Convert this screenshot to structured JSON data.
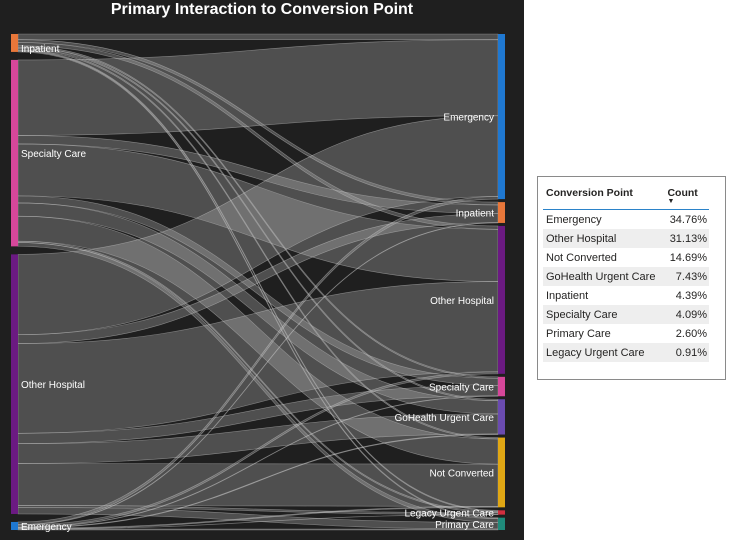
{
  "title": "Primary Interaction to Conversion Point",
  "table": {
    "headers": [
      "Conversion Point",
      "Count"
    ],
    "rows": [
      {
        "name": "Emergency",
        "value": "34.76%"
      },
      {
        "name": "Other Hospital",
        "value": "31.13%"
      },
      {
        "name": "Not Converted",
        "value": "14.69%"
      },
      {
        "name": "GoHealth Urgent Care",
        "value": "7.43%"
      },
      {
        "name": "Inpatient",
        "value": "4.39%"
      },
      {
        "name": "Specialty Care",
        "value": "4.09%"
      },
      {
        "name": "Primary Care",
        "value": "2.60%"
      },
      {
        "name": "Legacy Urgent Care",
        "value": "0.91%"
      }
    ]
  },
  "chart_data": {
    "type": "sankey",
    "title": "Primary Interaction to Conversion Point",
    "sources": [
      {
        "name": "Inpatient",
        "color": "#e8773a"
      },
      {
        "name": "Specialty Care",
        "color": "#d6479a"
      },
      {
        "name": "Other Hospital",
        "color": "#6b1a82"
      },
      {
        "name": "Emergency",
        "color": "#1f78d1"
      }
    ],
    "targets": [
      {
        "name": "Emergency",
        "color": "#1f78d1"
      },
      {
        "name": "Inpatient",
        "color": "#e8773a"
      },
      {
        "name": "Other Hospital",
        "color": "#6b1a82"
      },
      {
        "name": "Specialty Care",
        "color": "#d6479a"
      },
      {
        "name": "GoHealth Urgent Care",
        "color": "#6a4bb0"
      },
      {
        "name": "Not Converted",
        "color": "#e0a714"
      },
      {
        "name": "Legacy Urgent Care",
        "color": "#d12f3f"
      },
      {
        "name": "Primary Care",
        "color": "#1f8a7a"
      }
    ],
    "flows": [
      {
        "source": "Inpatient",
        "target": "Emergency",
        "value": 1.2
      },
      {
        "source": "Inpatient",
        "target": "Inpatient",
        "value": 0.6
      },
      {
        "source": "Inpatient",
        "target": "Other Hospital",
        "value": 0.7
      },
      {
        "source": "Inpatient",
        "target": "Specialty Care",
        "value": 0.3
      },
      {
        "source": "Inpatient",
        "target": "GoHealth Urgent Care",
        "value": 0.3
      },
      {
        "source": "Inpatient",
        "target": "Not Converted",
        "value": 0.3
      },
      {
        "source": "Inpatient",
        "target": "Legacy Urgent Care",
        "value": 0.2
      },
      {
        "source": "Inpatient",
        "target": "Primary Care",
        "value": 0.2
      },
      {
        "source": "Specialty Care",
        "target": "Emergency",
        "value": 16.0
      },
      {
        "source": "Specialty Care",
        "target": "Inpatient",
        "value": 1.8
      },
      {
        "source": "Specialty Care",
        "target": "Other Hospital",
        "value": 11.0
      },
      {
        "source": "Specialty Care",
        "target": "Specialty Care",
        "value": 1.5
      },
      {
        "source": "Specialty Care",
        "target": "GoHealth Urgent Care",
        "value": 2.8
      },
      {
        "source": "Specialty Care",
        "target": "Not Converted",
        "value": 5.3
      },
      {
        "source": "Specialty Care",
        "target": "Legacy Urgent Care",
        "value": 0.3
      },
      {
        "source": "Specialty Care",
        "target": "Primary Care",
        "value": 0.8
      },
      {
        "source": "Other Hospital",
        "target": "Emergency",
        "value": 17.0
      },
      {
        "source": "Other Hospital",
        "target": "Inpatient",
        "value": 1.9
      },
      {
        "source": "Other Hospital",
        "target": "Other Hospital",
        "value": 19.0
      },
      {
        "source": "Other Hospital",
        "target": "Specialty Care",
        "value": 2.2
      },
      {
        "source": "Other Hospital",
        "target": "GoHealth Urgent Care",
        "value": 4.2
      },
      {
        "source": "Other Hospital",
        "target": "Not Converted",
        "value": 8.9
      },
      {
        "source": "Other Hospital",
        "target": "Legacy Urgent Care",
        "value": 0.4
      },
      {
        "source": "Other Hospital",
        "target": "Primary Care",
        "value": 1.4
      },
      {
        "source": "Emergency",
        "target": "Emergency",
        "value": 0.56
      },
      {
        "source": "Emergency",
        "target": "Inpatient",
        "value": 0.09
      },
      {
        "source": "Emergency",
        "target": "Other Hospital",
        "value": 0.43
      },
      {
        "source": "Emergency",
        "target": "Specialty Care",
        "value": 0.09
      },
      {
        "source": "Emergency",
        "target": "GoHealth Urgent Care",
        "value": 0.13
      },
      {
        "source": "Emergency",
        "target": "Not Converted",
        "value": 0.19
      },
      {
        "source": "Emergency",
        "target": "Legacy Urgent Care",
        "value": 0.01
      },
      {
        "source": "Emergency",
        "target": "Primary Care",
        "value": 0.2
      }
    ]
  }
}
